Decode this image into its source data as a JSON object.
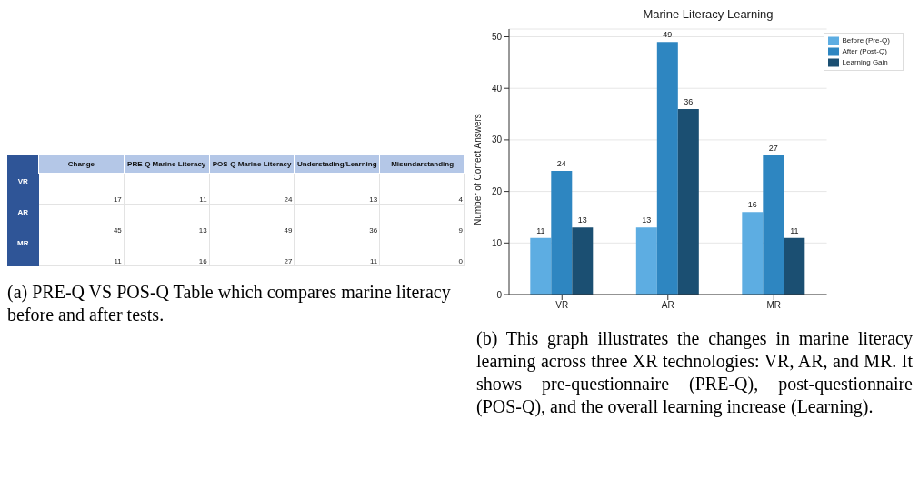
{
  "chart_data": [
    {
      "type": "heatmap",
      "categories": [
        "Change",
        "PRE-Q Marine Literacy",
        "POS-Q Marine Literacy",
        "Understading/Learning",
        "Misundarstanding"
      ],
      "y_categories": [
        "VR",
        "AR",
        "MR"
      ],
      "cells": [
        [
          17,
          11,
          24,
          13,
          4
        ],
        [
          45,
          13,
          49,
          36,
          9
        ],
        [
          11,
          16,
          27,
          11,
          0
        ]
      ],
      "data_labels": true,
      "grid": true,
      "annotations": [
        "(a) PRE-Q VS POS-Q Table which compares marine literacy before and after tests."
      ]
    },
    {
      "type": "bar",
      "title": "Marine Literacy Learning",
      "ylabel": "Number of Correct Answers",
      "categories": [
        "VR",
        "AR",
        "MR"
      ],
      "series": [
        {
          "name": "Before (Pre-Q)",
          "color": "#5dade2",
          "values": [
            11,
            13,
            16
          ]
        },
        {
          "name": "After (Post-Q)",
          "color": "#2e86c1",
          "values": [
            24,
            49,
            27
          ]
        },
        {
          "name": "Learning Gain",
          "color": "#1b4f72",
          "values": [
            13,
            36,
            11
          ]
        }
      ],
      "ylim": [
        0,
        51.5
      ],
      "yticks": [
        0,
        10,
        20,
        30,
        40,
        50
      ],
      "grid": "y",
      "legend": "top right",
      "data_labels": true,
      "annotations": [
        "(b) This graph illustrates the changes in marine literacy learning across three XR technologies: VR, AR, and MR. It shows pre-questionnaire (PRE-Q), post-questionnaire (POS-Q), and the overall learning increase (Learning)."
      ]
    }
  ]
}
